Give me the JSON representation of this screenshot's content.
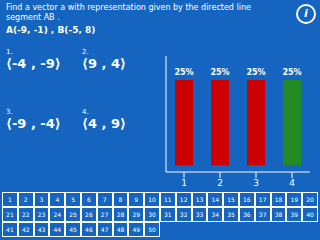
{
  "chart_data": {
    "type": "bar",
    "title": "Find a vector a with representation given by the directed line segment  AB .",
    "subtitle": "A(-9, -1) ,  B(-5, 8)",
    "categories": [
      "1",
      "2",
      "3",
      "4"
    ],
    "values": [
      25,
      25,
      25,
      25
    ],
    "value_labels": [
      "25%",
      "25%",
      "25%",
      "25%"
    ],
    "data_labels": true,
    "colors": [
      "#CC0000",
      "#CC0000",
      "#CC0000",
      "#228B22"
    ],
    "ylim": [
      -2,
      32
    ],
    "tick_labels": "x",
    "grid": false,
    "options": [
      {
        "num": "1.",
        "text": "⟨-4 , -9⟩"
      },
      {
        "num": "2.",
        "text": "⟨9 , 4⟩"
      },
      {
        "num": "3.",
        "text": "⟨-9 , -4⟩"
      },
      {
        "num": "4.",
        "text": "⟨4 , 9⟩"
      }
    ],
    "annotations": [
      "i"
    ],
    "cells": [
      [
        1,
        2,
        3,
        4,
        5,
        6,
        7,
        8,
        9,
        10,
        11,
        12,
        13,
        14,
        15,
        16,
        17,
        18,
        19,
        20
      ],
      [
        21,
        22,
        23,
        24,
        25,
        26,
        27,
        28,
        29,
        30,
        31,
        32,
        33,
        34,
        35,
        36,
        37,
        38,
        39,
        40
      ],
      [
        41,
        42,
        43,
        44,
        45,
        46,
        47,
        48,
        49,
        50
      ]
    ]
  }
}
